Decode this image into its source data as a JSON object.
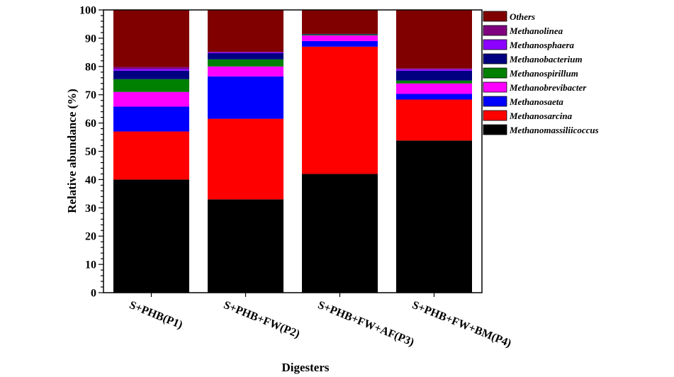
{
  "chart_data": {
    "type": "bar",
    "stacked": true,
    "title": "",
    "xlabel": "Digesters",
    "ylabel": "Relative abundance (%)",
    "ylim": [
      0,
      100
    ],
    "yticks": [
      0,
      10,
      20,
      30,
      40,
      50,
      60,
      70,
      80,
      90,
      100
    ],
    "categories": [
      "S+PHB(P1)",
      "S+PHB+FW(P2)",
      "S+PHB+FW+AF(P3)",
      "S+PHB+FW+BM(P4)"
    ],
    "legend_position": "right",
    "series": [
      {
        "name": "Methanomassiliicoccus",
        "color": "#000000",
        "values": [
          40.0,
          33.0,
          42.0,
          53.8
        ]
      },
      {
        "name": "Methanosarcina",
        "color": "#ff0000",
        "values": [
          17.0,
          28.5,
          45.0,
          14.5
        ]
      },
      {
        "name": "Methanosaeta",
        "color": "#0000ff",
        "values": [
          8.8,
          15.0,
          2.0,
          2.0
        ]
      },
      {
        "name": "Methanobrevibacter",
        "color": "#ff00ff",
        "values": [
          5.2,
          3.5,
          2.0,
          3.7
        ]
      },
      {
        "name": "Methanospirillum",
        "color": "#008000",
        "values": [
          4.5,
          2.5,
          0.3,
          1.0
        ]
      },
      {
        "name": "Methanobacterium",
        "color": "#000080",
        "values": [
          3.0,
          2.2,
          0.2,
          3.5
        ]
      },
      {
        "name": "Methanosphaera",
        "color": "#8b00ff",
        "values": [
          0.6,
          0.3,
          0.0,
          0.5
        ]
      },
      {
        "name": "Methanolinea",
        "color": "#800080",
        "values": [
          0.7,
          0.2,
          0.0,
          0.3
        ]
      },
      {
        "name": "Others",
        "color": "#800000",
        "values": [
          20.2,
          14.8,
          8.5,
          20.7
        ]
      }
    ]
  }
}
